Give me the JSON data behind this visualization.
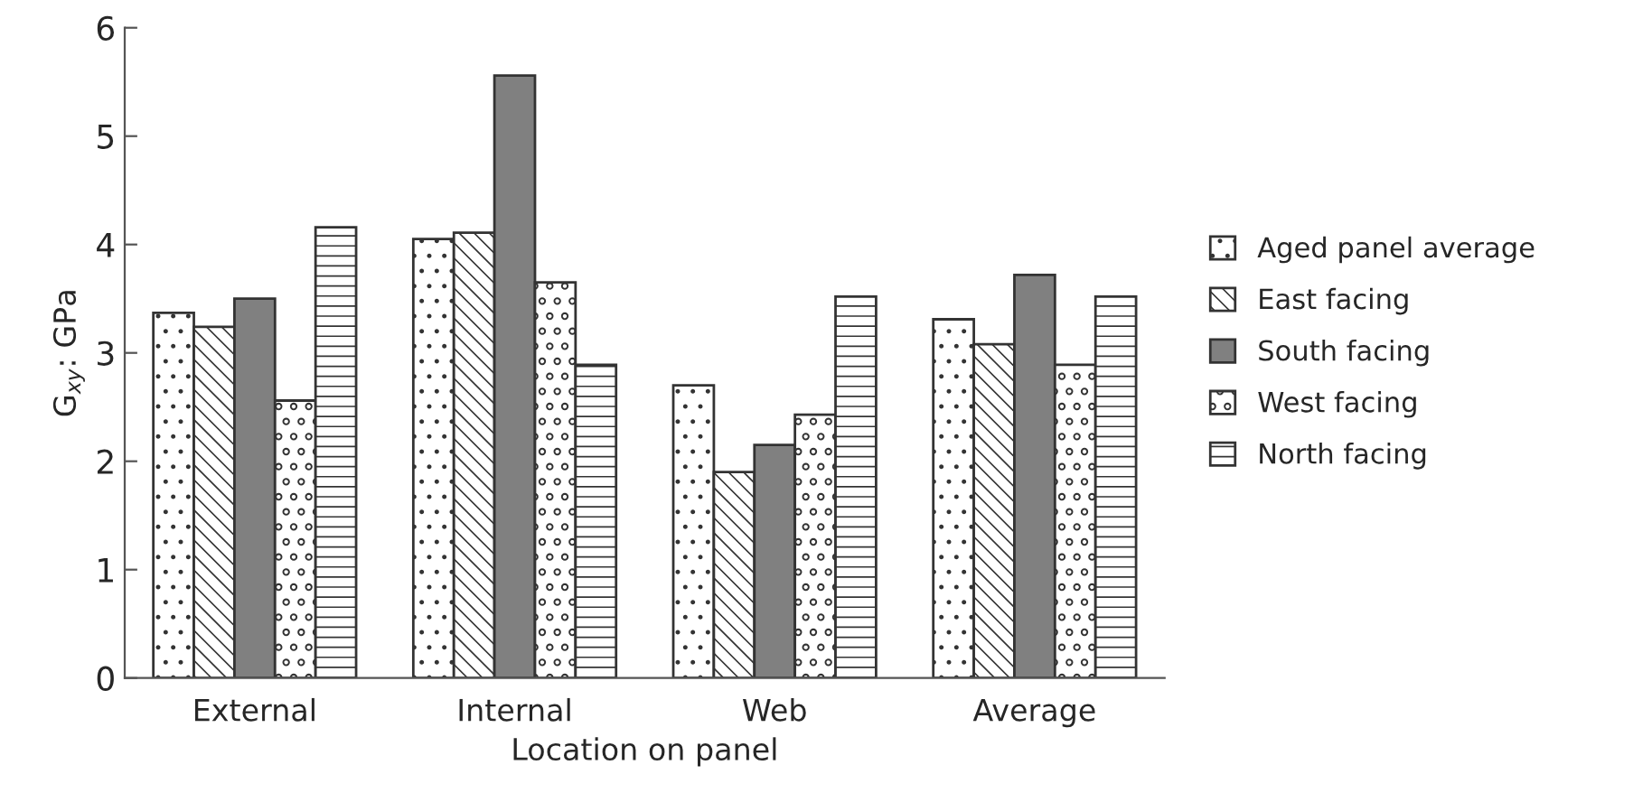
{
  "chart_data": {
    "type": "bar",
    "xlabel": "Location on panel",
    "ylabel": "G$_{xy}$: GPa",
    "categories": [
      "External",
      "Internal",
      "Web",
      "Average"
    ],
    "series": [
      {
        "name": "Aged panel average",
        "color": "#333333",
        "values": [
          3.37,
          4.05,
          2.7,
          3.31
        ]
      },
      {
        "name": "East facing",
        "color": "#333333",
        "values": [
          3.24,
          4.11,
          1.9,
          3.08
        ]
      },
      {
        "name": "South facing",
        "color": "#808080",
        "values": [
          3.5,
          5.56,
          2.15,
          3.72
        ]
      },
      {
        "name": "West facing",
        "color": "#333333",
        "values": [
          2.56,
          3.65,
          2.43,
          2.89
        ]
      },
      {
        "name": "North facing",
        "color": "#333333",
        "values": [
          4.16,
          2.89,
          3.52,
          3.52
        ]
      }
    ],
    "ylim": [
      0,
      6
    ],
    "yticks": [
      0,
      1,
      2,
      3,
      4,
      5,
      6
    ],
    "grid": false,
    "legend": "right"
  }
}
